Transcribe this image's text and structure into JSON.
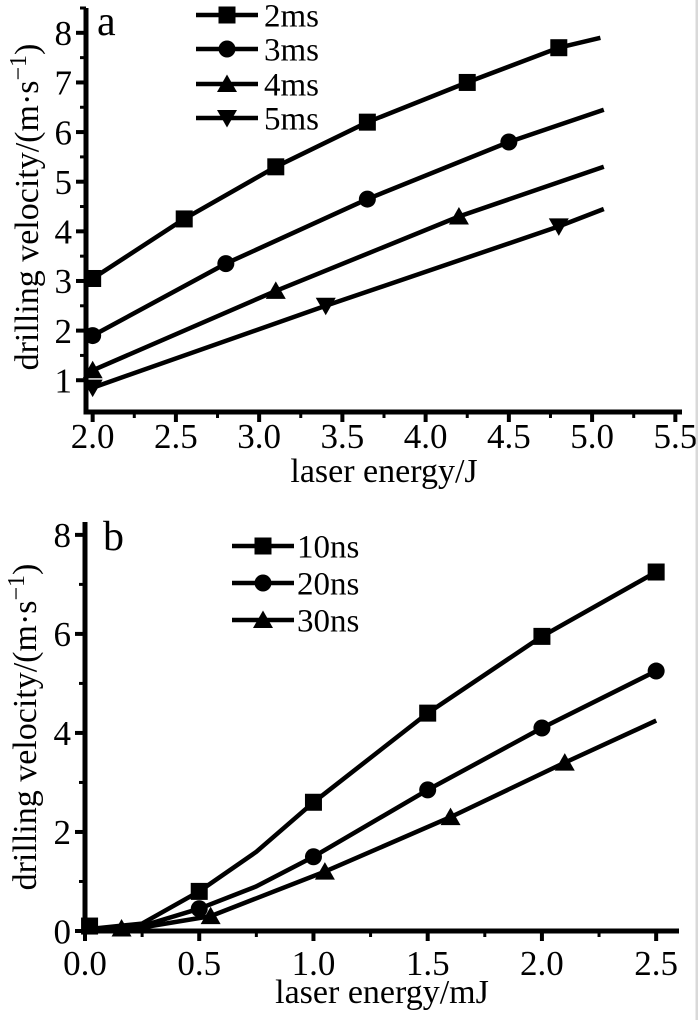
{
  "figure": {
    "background": "#ffffff",
    "ink": "#000000",
    "edge_artifact_color": "#c9c9c9"
  },
  "chart_data": [
    {
      "panel": "a",
      "panel_label": "a",
      "type": "line",
      "title": "",
      "xlabel": "laser energy/J",
      "ylabel": "drilling velocity/(m·s⁻¹)",
      "xlim": [
        1.96,
        5.54
      ],
      "ylim": [
        0.36,
        8.5
      ],
      "grid": false,
      "legend_position": "top-center-inside",
      "xticks": [
        {
          "v": 2.0,
          "label": "2.0"
        },
        {
          "v": 2.5,
          "label": "2.5"
        },
        {
          "v": 3.0,
          "label": "3.0"
        },
        {
          "v": 3.5,
          "label": "3.5"
        },
        {
          "v": 4.0,
          "label": "4.0"
        },
        {
          "v": 4.5,
          "label": "4.5"
        },
        {
          "v": 5.0,
          "label": "5.0"
        },
        {
          "v": 5.5,
          "label": "5.5"
        }
      ],
      "xminor": [
        2.25,
        2.75,
        3.25,
        3.75,
        4.25,
        4.75,
        5.25
      ],
      "yticks": [
        {
          "v": 1,
          "label": "1"
        },
        {
          "v": 2,
          "label": "2"
        },
        {
          "v": 3,
          "label": "3"
        },
        {
          "v": 4,
          "label": "4"
        },
        {
          "v": 5,
          "label": "5"
        },
        {
          "v": 6,
          "label": "6"
        },
        {
          "v": 7,
          "label": "7"
        },
        {
          "v": 8,
          "label": "8"
        }
      ],
      "yminor": [
        1.5,
        2.5,
        3.5,
        4.5,
        5.5,
        6.5,
        7.5,
        8.5
      ],
      "series": [
        {
          "name": "2ms",
          "marker": "square",
          "color": "#000000",
          "points": [
            [
              2.0,
              3.05
            ],
            [
              2.55,
              4.25
            ],
            [
              3.1,
              5.3
            ],
            [
              3.65,
              6.2
            ],
            [
              4.25,
              7.0
            ],
            [
              4.8,
              7.7
            ],
            [
              5.05,
              7.9
            ]
          ],
          "marker_at": [
            [
              2.0,
              3.05
            ],
            [
              2.55,
              4.25
            ],
            [
              3.1,
              5.3
            ],
            [
              3.65,
              6.2
            ],
            [
              4.25,
              7.0
            ],
            [
              4.8,
              7.7
            ]
          ]
        },
        {
          "name": "3ms",
          "marker": "circle",
          "color": "#000000",
          "points": [
            [
              2.0,
              1.9
            ],
            [
              2.8,
              3.35
            ],
            [
              3.65,
              4.65
            ],
            [
              4.5,
              5.8
            ],
            [
              5.07,
              6.45
            ]
          ],
          "marker_at": [
            [
              2.0,
              1.9
            ],
            [
              2.8,
              3.35
            ],
            [
              3.65,
              4.65
            ],
            [
              4.5,
              5.8
            ]
          ]
        },
        {
          "name": "4ms",
          "marker": "triangle-up",
          "color": "#000000",
          "points": [
            [
              2.0,
              1.2
            ],
            [
              3.1,
              2.8
            ],
            [
              4.2,
              4.3
            ],
            [
              5.07,
              5.3
            ]
          ],
          "marker_at": [
            [
              2.0,
              1.2
            ],
            [
              3.1,
              2.8
            ],
            [
              4.2,
              4.3
            ]
          ]
        },
        {
          "name": "5ms",
          "marker": "triangle-down",
          "color": "#000000",
          "points": [
            [
              2.0,
              0.85
            ],
            [
              3.4,
              2.5
            ],
            [
              4.8,
              4.1
            ],
            [
              5.07,
              4.45
            ]
          ],
          "marker_at": [
            [
              2.0,
              0.85
            ],
            [
              3.4,
              2.5
            ],
            [
              4.8,
              4.1
            ]
          ]
        }
      ]
    },
    {
      "panel": "b",
      "panel_label": "b",
      "type": "line",
      "title": "",
      "xlabel": "laser energy/mJ",
      "ylabel": "drilling velocity/(m·s⁻¹)",
      "xlim": [
        0.0,
        2.6
      ],
      "ylim": [
        0.0,
        8.26
      ],
      "grid": false,
      "legend_position": "top-center-inside",
      "xticks": [
        {
          "v": 0.0,
          "label": "0.0"
        },
        {
          "v": 0.5,
          "label": "0.5"
        },
        {
          "v": 1.0,
          "label": "1.0"
        },
        {
          "v": 1.5,
          "label": "1.5"
        },
        {
          "v": 2.0,
          "label": "2.0"
        },
        {
          "v": 2.5,
          "label": "2.5"
        }
      ],
      "xminor": [
        0.25,
        0.75,
        1.25,
        1.75,
        2.25
      ],
      "yticks": [
        {
          "v": 0,
          "label": "0"
        },
        {
          "v": 2,
          "label": "2"
        },
        {
          "v": 4,
          "label": "4"
        },
        {
          "v": 6,
          "label": "6"
        },
        {
          "v": 8,
          "label": "8"
        }
      ],
      "yminor": [
        1,
        3,
        5,
        7
      ],
      "series": [
        {
          "name": "10ns",
          "marker": "square",
          "color": "#000000",
          "points": [
            [
              0,
              0.03
            ],
            [
              0.25,
              0.15
            ],
            [
              0.5,
              0.8
            ],
            [
              0.75,
              1.6
            ],
            [
              1.0,
              2.6
            ],
            [
              1.5,
              4.4
            ],
            [
              2.0,
              5.95
            ],
            [
              2.5,
              7.25
            ]
          ],
          "marker_at": [
            [
              0.02,
              0.1
            ],
            [
              0.5,
              0.8
            ],
            [
              1.0,
              2.6
            ],
            [
              1.5,
              4.4
            ],
            [
              2.0,
              5.95
            ],
            [
              2.5,
              7.25
            ]
          ]
        },
        {
          "name": "20ns",
          "marker": "circle",
          "color": "#000000",
          "points": [
            [
              0,
              0.02
            ],
            [
              0.25,
              0.1
            ],
            [
              0.5,
              0.45
            ],
            [
              0.75,
              0.9
            ],
            [
              1.0,
              1.5
            ],
            [
              1.5,
              2.85
            ],
            [
              2.0,
              4.1
            ],
            [
              2.5,
              5.25
            ]
          ],
          "marker_at": [
            [
              0.5,
              0.45
            ],
            [
              1.0,
              1.5
            ],
            [
              1.5,
              2.85
            ],
            [
              2.0,
              4.1
            ],
            [
              2.5,
              5.25
            ]
          ]
        },
        {
          "name": "30ns",
          "marker": "triangle-up",
          "color": "#000000",
          "points": [
            [
              0,
              0.0
            ],
            [
              0.25,
              0.07
            ],
            [
              0.55,
              0.3
            ],
            [
              1.05,
              1.2
            ],
            [
              1.6,
              2.3
            ],
            [
              2.1,
              3.4
            ],
            [
              2.5,
              4.25
            ]
          ],
          "marker_at": [
            [
              0.16,
              0.05
            ],
            [
              0.55,
              0.3
            ],
            [
              1.05,
              1.2
            ],
            [
              1.6,
              2.3
            ],
            [
              2.1,
              3.4
            ]
          ]
        }
      ]
    }
  ]
}
